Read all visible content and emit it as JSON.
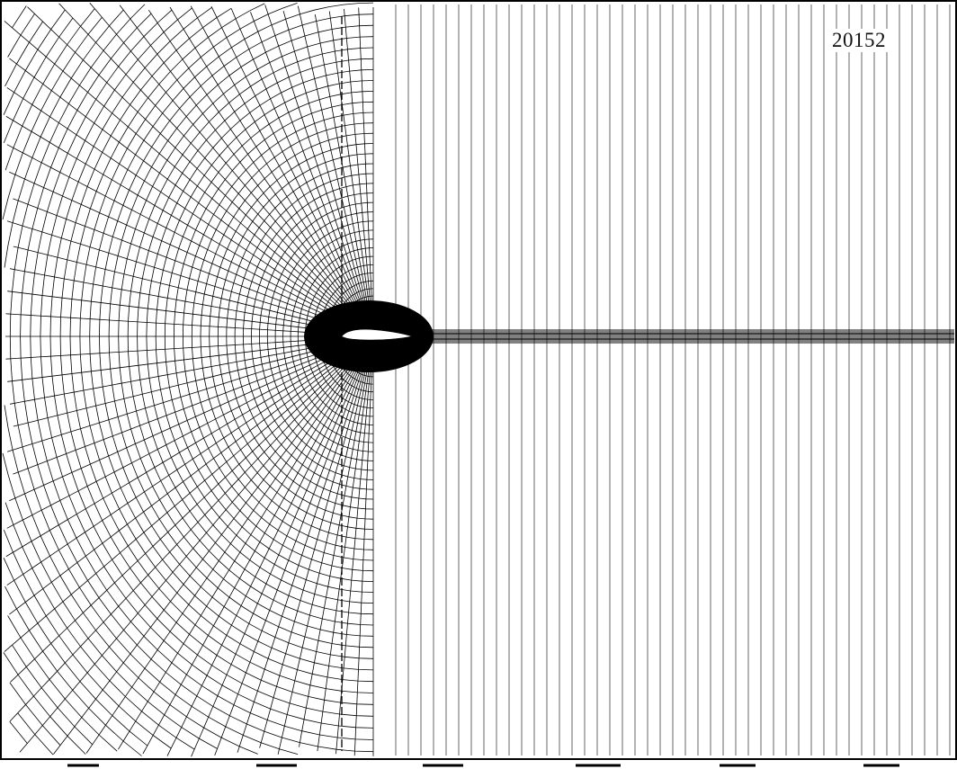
{
  "figure": {
    "label": "20152",
    "subject": "airfoil",
    "colors": {
      "background": "#ffffff",
      "ink": "#000000"
    }
  }
}
